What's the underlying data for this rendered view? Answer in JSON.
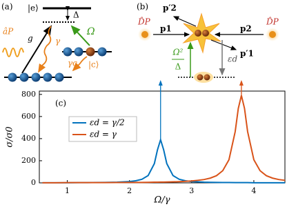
{
  "diagram_a": {
    "label": "(a)",
    "excited": "|e⟩",
    "detuning": "Δ",
    "coupling": "Ω",
    "g": "g",
    "gamma": "γ",
    "gamma_c": "γc",
    "cavity_state": "|c⟩",
    "probe": "âP"
  },
  "diagram_b": {
    "label": "(b)",
    "p2_out": "p′2",
    "probe_left": "D̂P",
    "probe_right": "D̂P",
    "p1": "p1",
    "p2": "p2",
    "omega_sq": "Ω²",
    "delta": "Δ",
    "epsilon_d": "εd",
    "p1_out": "p′1"
  },
  "chart_data": {
    "type": "line",
    "panel_label": "(c)",
    "x_label": "Ω/γ",
    "y_label": "σ/σ0",
    "x": [
      0.6,
      0.8,
      1.0,
      1.2,
      1.4,
      1.6,
      1.8,
      2.0,
      2.1,
      2.2,
      2.3,
      2.4,
      2.45,
      2.5,
      2.55,
      2.6,
      2.7,
      2.8,
      2.9,
      3.0,
      3.1,
      3.2,
      3.3,
      3.4,
      3.5,
      3.6,
      3.7,
      3.75,
      3.8,
      3.85,
      3.9,
      4.0,
      4.1,
      4.2,
      4.3,
      4.4,
      4.5
    ],
    "series": [
      {
        "name": "εd = γ/2",
        "color": "#0072bd",
        "values": [
          1,
          1,
          1,
          2,
          3,
          4,
          6,
          12,
          19,
          32,
          66,
          174,
          298,
          390,
          298,
          174,
          66,
          32,
          19,
          12,
          9,
          6,
          5,
          4,
          3,
          3,
          2,
          2,
          2,
          2,
          2,
          1,
          1,
          1,
          1,
          1,
          1
        ]
      },
      {
        "name": "εd = γ",
        "color": "#d95319",
        "values": [
          1,
          1,
          2,
          2,
          2,
          2,
          3,
          4,
          4,
          4,
          5,
          6,
          6,
          7,
          7,
          8,
          9,
          11,
          14,
          17,
          23,
          30,
          43,
          65,
          110,
          209,
          463,
          673,
          790,
          673,
          463,
          209,
          110,
          65,
          43,
          30,
          23
        ]
      }
    ],
    "xlim": [
      0.55,
      4.5
    ],
    "ylim": [
      0,
      830
    ],
    "xticks": [
      1,
      2,
      3,
      4
    ],
    "yticks": [
      0,
      200,
      400,
      600,
      800
    ],
    "grid": false,
    "legend": "upper left"
  }
}
